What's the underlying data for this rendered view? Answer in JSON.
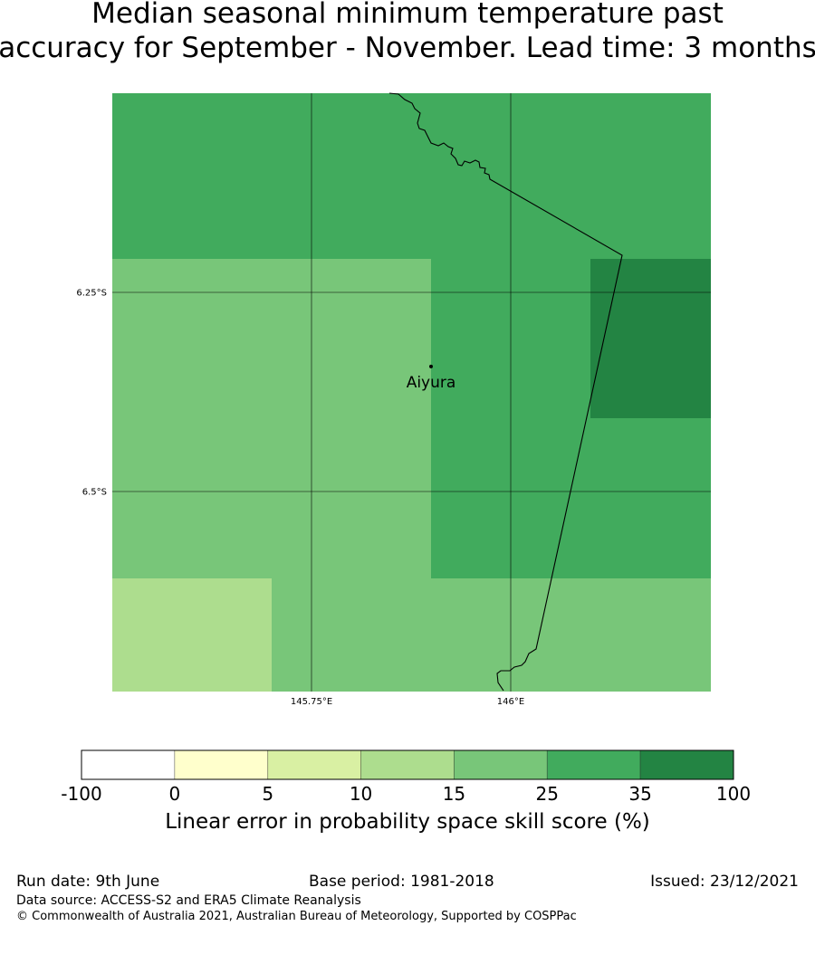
{
  "title_line1": "Median seasonal minimum temperature past",
  "title_line2": "accuracy for September - November. Lead time: 3 months",
  "map": {
    "lat_ticks": [
      {
        "value": -6.25,
        "label": "6.25°S"
      },
      {
        "value": -6.5,
        "label": "6.5°S"
      }
    ],
    "lon_ticks": [
      {
        "value": 145.75,
        "label": "145.75°E"
      },
      {
        "value": 146.0,
        "label": "146°E"
      }
    ],
    "location": {
      "name": "Aiyura",
      "lon": 145.9,
      "lat": -6.343
    },
    "cell_colors": {
      "15-25": "#78c679",
      "25-35": "#41ab5d",
      "35-100": "#238443",
      "10-15": "#addd8e"
    },
    "border_color": "#000000"
  },
  "colorbar": {
    "label": "Linear error in probability space skill score (%)",
    "ticks": [
      "-100",
      "0",
      "5",
      "10",
      "15",
      "25",
      "35",
      "100"
    ],
    "colors": [
      "#ffffff",
      "#ffffcc",
      "#d9f0a3",
      "#addd8e",
      "#78c679",
      "#41ab5d",
      "#238443"
    ]
  },
  "footer": {
    "run_date": "Run date: 9th June",
    "base_period": "Base period: 1981-2018",
    "issued": "Issued: 23/12/2021",
    "data_source": "Data source: ACCESS-S2 and ERA5 Climate Reanalysis",
    "copyright": "© Commonwealth of Australia 2021, Australian Bureau of Meteorology, Supported by COSPPac"
  }
}
